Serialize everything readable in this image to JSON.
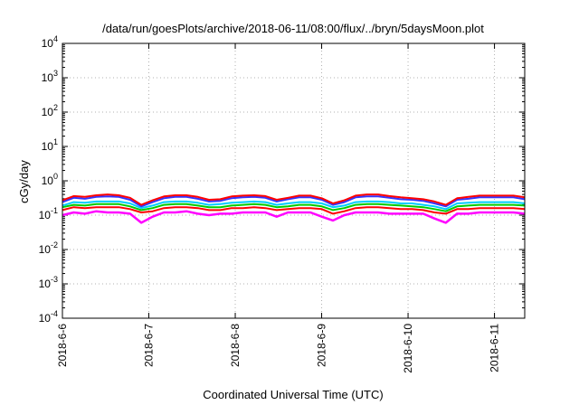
{
  "chart_data": {
    "type": "line",
    "title": "/data/run/goesPlots/archive/2018-06-11/08:00/flux/../bryn/5daysMoon.plot",
    "xlabel": "Coordinated Universal Time (UTC)",
    "ylabel": "cGy/day",
    "y_scale": "log",
    "ylim": [
      0.0001,
      10000
    ],
    "y_ticks": [
      {
        "base": "10",
        "exp": "4"
      },
      {
        "base": "10",
        "exp": "3"
      },
      {
        "base": "10",
        "exp": "2"
      },
      {
        "base": "10",
        "exp": "1"
      },
      {
        "base": "10",
        "exp": "0"
      },
      {
        "base": "10",
        "exp": "-1"
      },
      {
        "base": "10",
        "exp": "-2"
      },
      {
        "base": "10",
        "exp": "-3"
      },
      {
        "base": "10",
        "exp": "-4"
      }
    ],
    "x_ticks": [
      "2018-6-6",
      "2018-6-7",
      "2018-6-8",
      "2018-6-9",
      "2018-6-10",
      "2018-6-11"
    ],
    "xlim_days": [
      0,
      5.35
    ],
    "grid": true,
    "series": [
      {
        "color": "#ff00ff",
        "values": [
          0.1,
          0.12,
          0.11,
          0.13,
          0.12,
          0.12,
          0.11,
          0.06,
          0.09,
          0.12,
          0.12,
          0.13,
          0.11,
          0.1,
          0.11,
          0.11,
          0.12,
          0.12,
          0.12,
          0.09,
          0.12,
          0.12,
          0.12,
          0.09,
          0.07,
          0.1,
          0.12,
          0.12,
          0.12,
          0.11,
          0.11,
          0.11,
          0.11,
          0.08,
          0.06,
          0.11,
          0.11,
          0.12,
          0.12,
          0.12,
          0.12,
          0.11
        ]
      },
      {
        "color": "#ff0000",
        "values": [
          0.14,
          0.17,
          0.16,
          0.17,
          0.17,
          0.17,
          0.15,
          0.12,
          0.13,
          0.16,
          0.17,
          0.17,
          0.16,
          0.14,
          0.14,
          0.16,
          0.16,
          0.17,
          0.16,
          0.14,
          0.15,
          0.16,
          0.16,
          0.15,
          0.11,
          0.13,
          0.16,
          0.17,
          0.17,
          0.16,
          0.15,
          0.15,
          0.14,
          0.12,
          0.11,
          0.15,
          0.15,
          0.16,
          0.16,
          0.16,
          0.16,
          0.15
        ]
      },
      {
        "color": "#00cc00",
        "values": [
          0.17,
          0.2,
          0.19,
          0.21,
          0.21,
          0.21,
          0.18,
          0.14,
          0.16,
          0.2,
          0.21,
          0.21,
          0.19,
          0.17,
          0.17,
          0.19,
          0.2,
          0.21,
          0.2,
          0.17,
          0.18,
          0.2,
          0.2,
          0.18,
          0.14,
          0.16,
          0.2,
          0.21,
          0.21,
          0.2,
          0.19,
          0.18,
          0.17,
          0.15,
          0.13,
          0.18,
          0.19,
          0.2,
          0.2,
          0.2,
          0.2,
          0.19
        ]
      },
      {
        "color": "#00ccff",
        "values": [
          0.19,
          0.24,
          0.23,
          0.25,
          0.25,
          0.25,
          0.22,
          0.16,
          0.19,
          0.24,
          0.25,
          0.25,
          0.23,
          0.2,
          0.21,
          0.23,
          0.24,
          0.25,
          0.24,
          0.2,
          0.22,
          0.24,
          0.24,
          0.22,
          0.17,
          0.19,
          0.24,
          0.25,
          0.25,
          0.24,
          0.22,
          0.22,
          0.2,
          0.18,
          0.15,
          0.22,
          0.23,
          0.24,
          0.24,
          0.24,
          0.24,
          0.22
        ]
      },
      {
        "color": "#3333ff",
        "values": [
          0.24,
          0.32,
          0.3,
          0.34,
          0.35,
          0.34,
          0.28,
          0.18,
          0.24,
          0.31,
          0.34,
          0.34,
          0.3,
          0.25,
          0.26,
          0.31,
          0.33,
          0.34,
          0.32,
          0.25,
          0.29,
          0.33,
          0.33,
          0.28,
          0.2,
          0.24,
          0.33,
          0.35,
          0.35,
          0.32,
          0.29,
          0.28,
          0.26,
          0.22,
          0.18,
          0.28,
          0.3,
          0.33,
          0.33,
          0.33,
          0.33,
          0.29
        ]
      },
      {
        "color": "#ff0000",
        "values": [
          0.27,
          0.36,
          0.34,
          0.38,
          0.4,
          0.38,
          0.32,
          0.2,
          0.27,
          0.35,
          0.38,
          0.38,
          0.34,
          0.28,
          0.29,
          0.35,
          0.37,
          0.38,
          0.36,
          0.28,
          0.32,
          0.37,
          0.37,
          0.31,
          0.22,
          0.27,
          0.37,
          0.4,
          0.4,
          0.36,
          0.33,
          0.31,
          0.29,
          0.25,
          0.2,
          0.31,
          0.34,
          0.37,
          0.37,
          0.37,
          0.37,
          0.33
        ]
      }
    ]
  }
}
